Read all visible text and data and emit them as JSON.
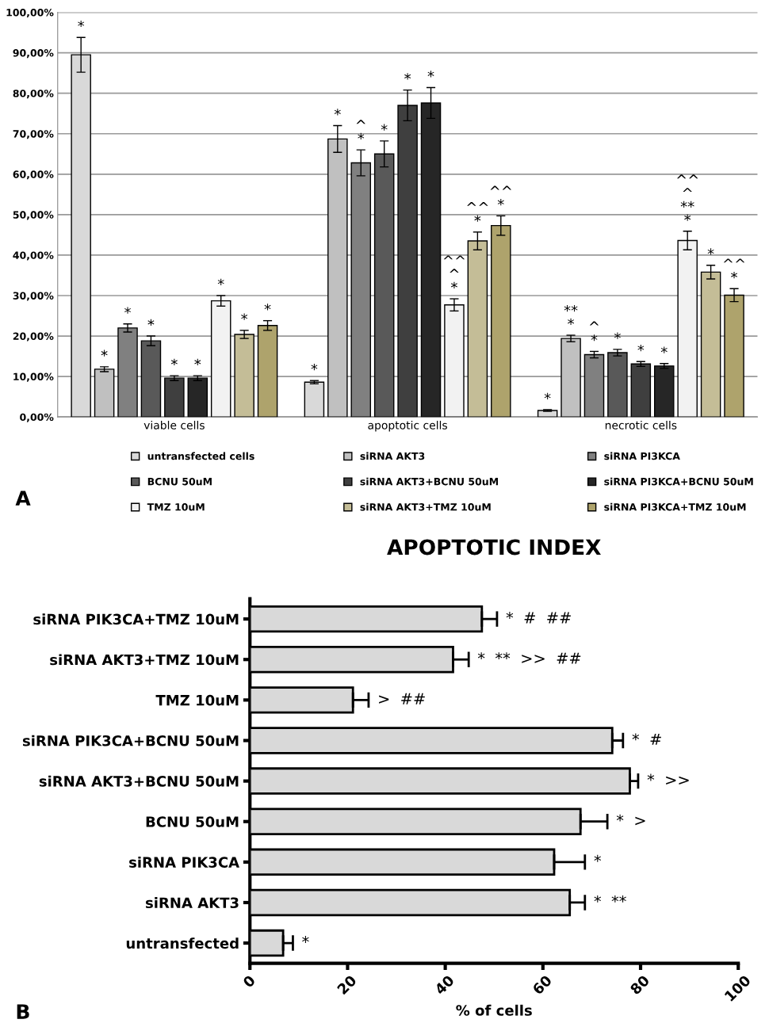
{
  "chart_data": [
    {
      "type": "bar",
      "categories": [
        "viable cells",
        "apoptotic cells",
        "necrotic cells"
      ],
      "ylim": [
        0,
        100
      ],
      "yticks": [
        {
          "value": 0,
          "label": "0,00%"
        },
        {
          "value": 10,
          "label": "10,00%"
        },
        {
          "value": 20,
          "label": "20,00%"
        },
        {
          "value": 30,
          "label": "30,00%"
        },
        {
          "value": 40,
          "label": "40,00%"
        },
        {
          "value": 50,
          "label": "50,00%"
        },
        {
          "value": 60,
          "label": "60,00%"
        },
        {
          "value": 70,
          "label": "70,00%"
        },
        {
          "value": 80,
          "label": "80,00%"
        },
        {
          "value": 90,
          "label": "90,00%"
        },
        {
          "value": 100,
          "label": "100,00%"
        }
      ],
      "grid": "y",
      "legend": "bottom",
      "annotations": [
        "A"
      ],
      "series": [
        {
          "name": "untransfected cells",
          "color": "#d9d9d9",
          "values": [
            89.5,
            8.6,
            1.6
          ],
          "errors": [
            4.3,
            0.4,
            0.2
          ],
          "value_labels": [
            "*",
            "*",
            "*"
          ]
        },
        {
          "name": "siRNA AKT3",
          "color": "#c0c0c0",
          "values": [
            11.8,
            68.7,
            19.4
          ],
          "errors": [
            0.6,
            3.3,
            0.8
          ],
          "value_labels": [
            "*",
            "*",
            "**\n*"
          ]
        },
        {
          "name": "siRNA PI3KCA",
          "color": "#808080",
          "values": [
            22.0,
            62.8,
            15.4
          ],
          "errors": [
            1.0,
            3.2,
            0.8
          ],
          "value_labels": [
            "*",
            "^\n*",
            "^\n*"
          ]
        },
        {
          "name": "BCNU 50uM",
          "color": "#595959",
          "values": [
            18.8,
            65.0,
            15.9
          ],
          "errors": [
            1.2,
            3.2,
            0.8
          ],
          "value_labels": [
            "*",
            "*",
            "*"
          ]
        },
        {
          "name": "siRNA AKT3+BCNU 50uM",
          "color": "#3f3f3f",
          "values": [
            9.6,
            77.0,
            13.1
          ],
          "errors": [
            0.6,
            3.8,
            0.6
          ],
          "value_labels": [
            "*",
            "*",
            "*"
          ]
        },
        {
          "name": "siRNA PI3KCA+BCNU 50uM",
          "color": "#262626",
          "values": [
            9.6,
            77.6,
            12.6
          ],
          "errors": [
            0.6,
            3.8,
            0.6
          ],
          "value_labels": [
            "*",
            "*",
            "*"
          ]
        },
        {
          "name": "TMZ 10uM",
          "color": "#f2f2f2",
          "values": [
            28.7,
            27.7,
            43.6
          ],
          "errors": [
            1.3,
            1.5,
            2.3
          ],
          "value_labels": [
            "*",
            "^^\n^\n*",
            "^^\n^\n**\n*"
          ]
        },
        {
          "name": "siRNA AKT3+TMZ 10uM",
          "color": "#c4bd97",
          "values": [
            20.4,
            43.5,
            35.8
          ],
          "errors": [
            1.0,
            2.2,
            1.7
          ],
          "value_labels": [
            "*",
            "^^\n*",
            "*"
          ]
        },
        {
          "name": "siRNA PI3KCA+TMZ 10uM",
          "color": "#aea36c",
          "values": [
            22.6,
            47.3,
            30.1
          ],
          "errors": [
            1.2,
            2.4,
            1.6
          ],
          "value_labels": [
            "*",
            "^^\n*",
            "^^\n*"
          ]
        }
      ]
    },
    {
      "type": "bar",
      "orientation": "horizontal",
      "title": "APOPTOTIC INDEX",
      "xlabel": "% of cells",
      "categories": [
        "siRNA PIK3CA+TMZ 10uM",
        "siRNA AKT3+TMZ 10uM",
        "TMZ 10uM",
        "siRNA PIK3CA+BCNU 50uM",
        "siRNA AKT3+BCNU 50uM",
        "BCNU 50uM",
        "siRNA PIK3CA",
        "siRNA AKT3",
        "untransfected"
      ],
      "xlim": [
        0,
        100
      ],
      "xticks": [
        0,
        20,
        40,
        60,
        80,
        100
      ],
      "grid": false,
      "annotations": [
        "B"
      ],
      "series": [
        {
          "color": "#d9d9d9",
          "values": [
            47.5,
            41.6,
            21.1,
            74.2,
            77.8,
            67.7,
            62.3,
            65.5,
            6.8
          ],
          "errors": [
            [
              47.5,
              50.6
            ],
            [
              41.6,
              44.8
            ],
            [
              21.1,
              24.3
            ],
            [
              74.2,
              76.4
            ],
            [
              77.8,
              79.5
            ],
            [
              67.7,
              73.2
            ],
            [
              62.3,
              68.6
            ],
            [
              65.5,
              68.6
            ],
            [
              6.8,
              8.8
            ]
          ],
          "value_labels": [
            "*  #  ##",
            "*  **  >>  ##",
            ">  ##",
            "*  #",
            "*  >>",
            "*  >",
            "*",
            "*  **",
            "*"
          ]
        }
      ]
    }
  ]
}
